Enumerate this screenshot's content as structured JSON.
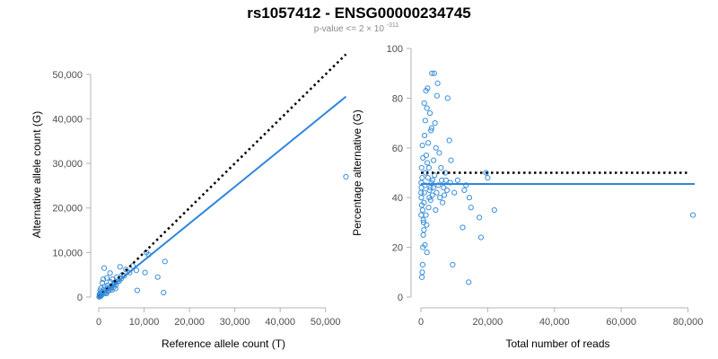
{
  "title": "rs1057412 - ENSG00000234745",
  "subtitle": {
    "prefix": "p-value <= 2",
    "times": "×",
    "base": "10",
    "exponent": "-311"
  },
  "colors": {
    "points": "#3a8fd9",
    "fit": "#2e86de",
    "reference": "#000000",
    "axis": "#b3b3b3"
  },
  "chart_data": [
    {
      "type": "scatter",
      "title": "",
      "xlabel": "Reference allele count (T)",
      "ylabel": "Alternative allele count (G)",
      "xlim": [
        0,
        55000
      ],
      "ylim": [
        0,
        55000
      ],
      "xticks": [
        0,
        10000,
        20000,
        30000,
        40000,
        50000
      ],
      "yticks": [
        0,
        10000,
        20000,
        30000,
        40000,
        50000
      ],
      "xtick_labels": [
        "0",
        "10,000",
        "20,000",
        "30,000",
        "40,000",
        "50,000"
      ],
      "ytick_labels": [
        "0",
        "10,000",
        "20,000",
        "30,000",
        "40,000",
        "50,000"
      ],
      "grid": false,
      "reference_line": {
        "style": "dotted",
        "points": [
          [
            0,
            0
          ],
          [
            54500,
            54500
          ]
        ]
      },
      "fit_line": {
        "style": "solid",
        "points": [
          [
            0,
            0
          ],
          [
            54500,
            45000
          ]
        ]
      },
      "points": [
        [
          54500,
          27000
        ],
        [
          14600,
          8000
        ],
        [
          14300,
          1000
        ],
        [
          13000,
          4500
        ],
        [
          11000,
          9500
        ],
        [
          10500,
          10000
        ],
        [
          10200,
          5500
        ],
        [
          8500,
          1500
        ],
        [
          8300,
          6000
        ],
        [
          7500,
          7000
        ],
        [
          6800,
          5500
        ],
        [
          6000,
          6200
        ],
        [
          5200,
          5000
        ],
        [
          4700,
          6800
        ],
        [
          4000,
          4500
        ],
        [
          3600,
          3300
        ],
        [
          3200,
          2800
        ],
        [
          2800,
          2200
        ],
        [
          2500,
          5400
        ],
        [
          2000,
          2000
        ],
        [
          1800,
          4300
        ],
        [
          1500,
          1000
        ],
        [
          1200,
          6500
        ],
        [
          1000,
          4000
        ],
        [
          800,
          3200
        ],
        [
          600,
          800
        ],
        [
          500,
          2000
        ],
        [
          400,
          300
        ],
        [
          300,
          1500
        ],
        [
          200,
          100
        ],
        [
          150,
          600
        ],
        [
          100,
          50
        ],
        [
          3000,
          2500
        ],
        [
          4200,
          3500
        ],
        [
          3800,
          2700
        ],
        [
          2200,
          1700
        ],
        [
          1600,
          1400
        ],
        [
          2700,
          1900
        ],
        [
          3300,
          2200
        ],
        [
          900,
          700
        ],
        [
          700,
          500
        ],
        [
          1300,
          900
        ],
        [
          2100,
          1300
        ],
        [
          2400,
          2100
        ],
        [
          3500,
          3000
        ],
        [
          4500,
          3600
        ],
        [
          5000,
          4200
        ],
        [
          5600,
          4800
        ],
        [
          1100,
          1700
        ],
        [
          1900,
          2600
        ],
        [
          600,
          1100
        ],
        [
          1400,
          2400
        ],
        [
          2600,
          3400
        ],
        [
          3000,
          4000
        ],
        [
          350,
          900
        ],
        [
          250,
          400
        ],
        [
          450,
          200
        ],
        [
          1700,
          800
        ],
        [
          2900,
          1600
        ],
        [
          3700,
          1900
        ]
      ]
    },
    {
      "type": "scatter",
      "title": "",
      "xlabel": "Total number of reads",
      "ylabel": "Percentage alternative (G)",
      "xlim": [
        0,
        82000
      ],
      "ylim": [
        0,
        100
      ],
      "xticks": [
        0,
        20000,
        40000,
        60000,
        80000
      ],
      "yticks": [
        0,
        20,
        40,
        60,
        80,
        100
      ],
      "xtick_labels": [
        "0",
        "20,000",
        "40,000",
        "60,000",
        "80,000"
      ],
      "ytick_labels": [
        "0",
        "20",
        "40",
        "60",
        "80",
        "100"
      ],
      "grid": false,
      "reference_line": {
        "style": "dotted",
        "points": [
          [
            0,
            50
          ],
          [
            80000,
            50
          ]
        ]
      },
      "fit_line": {
        "style": "solid",
        "points": [
          [
            0,
            45.5
          ],
          [
            82000,
            45.5
          ]
        ]
      },
      "points": [
        [
          81500,
          33
        ],
        [
          22000,
          35
        ],
        [
          20000,
          48
        ],
        [
          19500,
          50
        ],
        [
          18000,
          24
        ],
        [
          17500,
          32
        ],
        [
          15000,
          36
        ],
        [
          14500,
          40
        ],
        [
          14300,
          6
        ],
        [
          13500,
          45
        ],
        [
          13000,
          43
        ],
        [
          12500,
          28
        ],
        [
          9500,
          13
        ],
        [
          9000,
          55
        ],
        [
          8500,
          63
        ],
        [
          8000,
          80
        ],
        [
          7500,
          47
        ],
        [
          7000,
          41
        ],
        [
          6500,
          38
        ],
        [
          6000,
          52
        ],
        [
          5500,
          58
        ],
        [
          5000,
          86
        ],
        [
          4800,
          81
        ],
        [
          4500,
          60
        ],
        [
          4200,
          70
        ],
        [
          4000,
          90
        ],
        [
          3800,
          55
        ],
        [
          3500,
          47
        ],
        [
          3300,
          90
        ],
        [
          3000,
          67
        ],
        [
          2800,
          44
        ],
        [
          2500,
          40
        ],
        [
          2300,
          36
        ],
        [
          2000,
          84
        ],
        [
          1800,
          76
        ],
        [
          1600,
          57
        ],
        [
          1400,
          50
        ],
        [
          1200,
          45
        ],
        [
          1000,
          42
        ],
        [
          900,
          38
        ],
        [
          800,
          30
        ],
        [
          700,
          25
        ],
        [
          600,
          20
        ],
        [
          500,
          13
        ],
        [
          400,
          10
        ],
        [
          300,
          8
        ],
        [
          1100,
          65
        ],
        [
          1300,
          71
        ],
        [
          1500,
          33
        ],
        [
          1700,
          29
        ],
        [
          1900,
          54
        ],
        [
          2100,
          48
        ],
        [
          2400,
          52
        ],
        [
          2600,
          43
        ],
        [
          2900,
          39
        ],
        [
          3100,
          46
        ],
        [
          3400,
          41
        ],
        [
          3700,
          44
        ],
        [
          4100,
          49
        ],
        [
          4400,
          35
        ],
        [
          4700,
          42
        ],
        [
          5200,
          45
        ],
        [
          5700,
          40
        ],
        [
          6200,
          47
        ],
        [
          6800,
          44
        ],
        [
          7300,
          50
        ],
        [
          7800,
          43
        ],
        [
          8800,
          46
        ],
        [
          10000,
          42
        ],
        [
          11000,
          47
        ],
        [
          1000,
          78
        ],
        [
          1500,
          83
        ],
        [
          2200,
          62
        ],
        [
          2700,
          74
        ],
        [
          3200,
          68
        ],
        [
          600,
          56
        ],
        [
          450,
          61
        ],
        [
          350,
          48
        ],
        [
          250,
          37
        ],
        [
          200,
          52
        ],
        [
          150,
          44
        ],
        [
          120,
          40
        ],
        [
          100,
          46
        ],
        [
          80,
          33
        ],
        [
          60,
          42
        ],
        [
          1800,
          18
        ],
        [
          1200,
          21
        ],
        [
          900,
          27
        ],
        [
          700,
          31
        ],
        [
          500,
          35
        ]
      ]
    }
  ]
}
